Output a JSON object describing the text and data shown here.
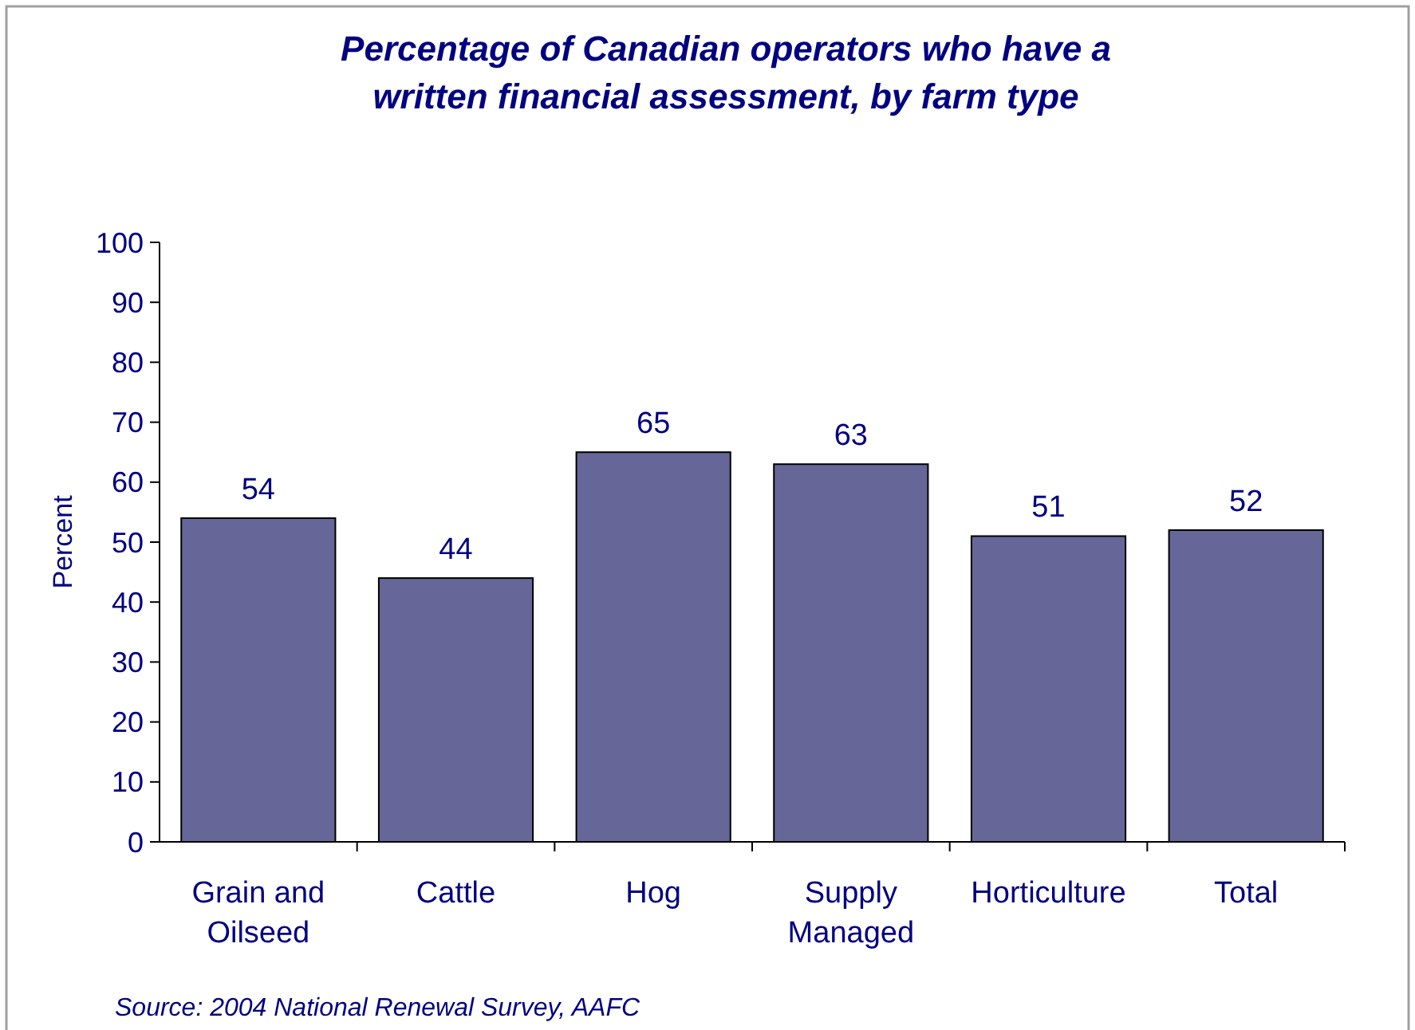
{
  "chart_data": {
    "type": "bar",
    "title": "Percentage of Canadian operators who have a written financial assessment, by farm type",
    "ylabel": "Percent",
    "categories": [
      "Grain and Oilseed",
      "Cattle",
      "Hog",
      "Supply Managed",
      "Horticulture",
      "Total"
    ],
    "values": [
      54,
      44,
      65,
      63,
      51,
      52
    ],
    "color": "#666699",
    "data_labels": true,
    "ylim": [
      0,
      100
    ],
    "yticks": [
      0,
      10,
      20,
      30,
      40,
      50,
      60,
      70,
      80,
      90,
      100
    ],
    "grid": false,
    "annotations": [
      "Source: 2004 National Renewal Survey, AAFC"
    ]
  }
}
